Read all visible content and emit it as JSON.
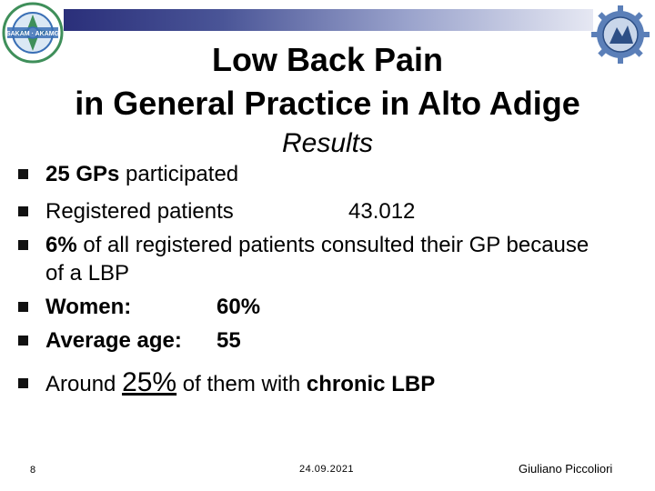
{
  "title": {
    "line1": "Low Back Pain",
    "line2": "in General Practice in Alto Adige"
  },
  "subtitle": "Results",
  "logo_left_text": "SAKAM · AKAMG",
  "bullets": {
    "b1": {
      "bold": "25 GPs",
      "rest": " participated"
    },
    "b2": {
      "label": "Registered patients",
      "value": "43.012"
    },
    "b3": {
      "bold": "6%",
      "rest": " of all registered patients consulted their GP because",
      "cont": "of a LBP"
    },
    "b4": {
      "label": "Women:",
      "value": "60%"
    },
    "b5": {
      "label": "Average age:",
      "value": "55"
    },
    "b6": {
      "pre": "Around ",
      "big": "25%",
      "mid": " of them with ",
      "bold": "chronic LBP"
    }
  },
  "footer": {
    "page": "8",
    "date": "24.09.2021",
    "author": "Giuliano Piccoliori"
  },
  "colors": {
    "bar_dark": "#2a2f7a",
    "bar_light": "#e6e8f3",
    "logo_blue": "#3a6fb5",
    "logo_green": "#3f8f5a"
  }
}
